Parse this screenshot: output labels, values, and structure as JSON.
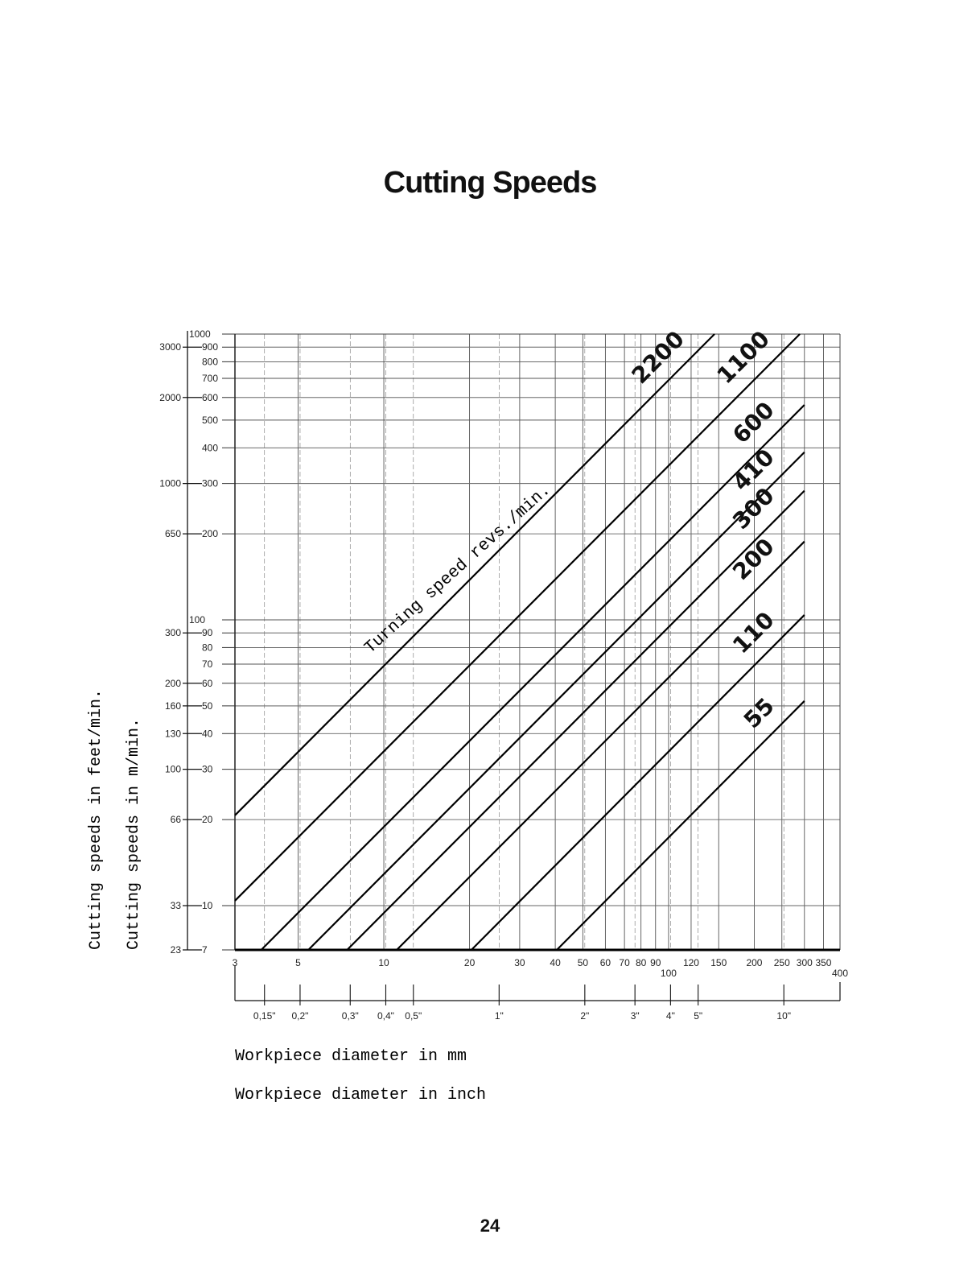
{
  "page": {
    "title": "Cutting Speeds",
    "page_number": "24"
  },
  "chart_data": {
    "type": "line",
    "title": "Cutting Speeds",
    "annotation": "Turning speed revs./min.",
    "ylabel_feet": "Cutting speeds in feet/min.",
    "ylabel_metric": "Cutting speeds in m/min.",
    "xlabel_mm": "Workpiece diameter in mm",
    "xlabel_inch": "Workpiece diameter in inch",
    "x_scale": "log",
    "y_scale": "log",
    "xlim": [
      3,
      400
    ],
    "ylim": [
      7,
      1000
    ],
    "grid": true,
    "x_ticks_mm": [
      "3",
      "5",
      "10",
      "20",
      "30",
      "40",
      "50",
      "60",
      "70",
      "80",
      "90",
      "100",
      "120",
      "150",
      "200",
      "250",
      "300",
      "350",
      "400"
    ],
    "x_ticks_mm_values": [
      3,
      5,
      10,
      20,
      30,
      40,
      50,
      60,
      70,
      80,
      90,
      100,
      120,
      150,
      200,
      250,
      300,
      350,
      400
    ],
    "x_ticks_inch": [
      "0,15\"",
      "0,2\"",
      "0,3\"",
      "0,4\"",
      "0,5\"",
      "1\"",
      "2\"",
      "3\"",
      "4\"",
      "5\"",
      "10\""
    ],
    "x_ticks_inch_mm": [
      3.81,
      5.08,
      7.62,
      10.16,
      12.7,
      25.4,
      50.8,
      76.2,
      101.6,
      127,
      254
    ],
    "y_ticks_metric": [
      "1000",
      "900",
      "800",
      "700",
      "600",
      "500",
      "400",
      "300",
      "200",
      "100",
      "90",
      "80",
      "70",
      "60",
      "50",
      "40",
      "30",
      "20",
      "10",
      "7"
    ],
    "y_ticks_metric_values": [
      1000,
      900,
      800,
      700,
      600,
      500,
      400,
      300,
      200,
      100,
      90,
      80,
      70,
      60,
      50,
      40,
      30,
      20,
      10,
      7
    ],
    "y_ticks_feet": [
      "3000",
      "2000",
      "1000",
      "650",
      "300",
      "200",
      "160",
      "130",
      "100",
      "66",
      "33",
      "23"
    ],
    "y_ticks_feet_m": [
      900,
      600,
      300,
      200,
      90,
      60,
      50,
      40,
      30,
      20,
      10,
      7
    ],
    "series": [
      {
        "name": "2200",
        "rpm": 2200,
        "points": [
          [
            3,
            20.7
          ],
          [
            145,
            1000
          ]
        ]
      },
      {
        "name": "1100",
        "rpm": 1100,
        "points": [
          [
            3,
            10.4
          ],
          [
            289,
            1000
          ]
        ]
      },
      {
        "name": "600",
        "rpm": 600,
        "points": [
          [
            3.71,
            7
          ],
          [
            300,
            565
          ]
        ]
      },
      {
        "name": "410",
        "rpm": 410,
        "points": [
          [
            5.43,
            7
          ],
          [
            300,
            386
          ]
        ]
      },
      {
        "name": "300",
        "rpm": 300,
        "points": [
          [
            7.43,
            7
          ],
          [
            300,
            283
          ]
        ]
      },
      {
        "name": "200",
        "rpm": 200,
        "points": [
          [
            11.1,
            7
          ],
          [
            300,
            188
          ]
        ]
      },
      {
        "name": "110",
        "rpm": 110,
        "points": [
          [
            20.3,
            7
          ],
          [
            300,
            104
          ]
        ]
      },
      {
        "name": "55",
        "rpm": 55,
        "points": [
          [
            40.5,
            7
          ],
          [
            300,
            52
          ]
        ]
      }
    ]
  }
}
